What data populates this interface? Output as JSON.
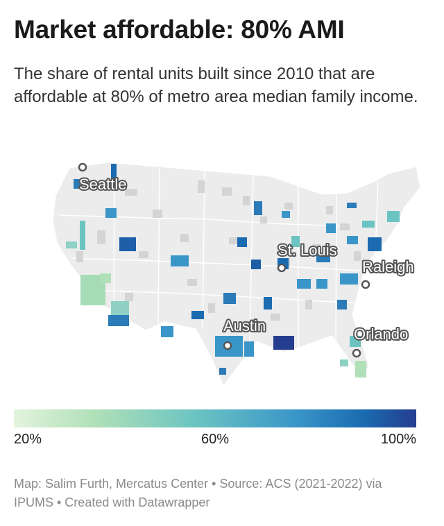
{
  "header": {
    "title": "Market affordable: 80% AMI",
    "subtitle": "The share of rental units built since 2010 that are affordable at 80% of metro area median family income."
  },
  "map": {
    "cities": [
      {
        "name": "Seattle"
      },
      {
        "name": "St. Louis"
      },
      {
        "name": "Raleigh"
      },
      {
        "name": "Austin"
      },
      {
        "name": "Orlando"
      }
    ]
  },
  "legend": {
    "colors": [
      "#e3f4dd",
      "#b0e0b8",
      "#6bc4c1",
      "#3a96c8",
      "#1a6bb0",
      "#253d8f"
    ],
    "ticks": [
      "20%",
      "60%",
      "100%"
    ]
  },
  "footer": {
    "credit": "Map: Salim Furth, Mercatus Center • Source: ACS (2021-2022) via IPUMS • Created with Datawrapper"
  }
}
